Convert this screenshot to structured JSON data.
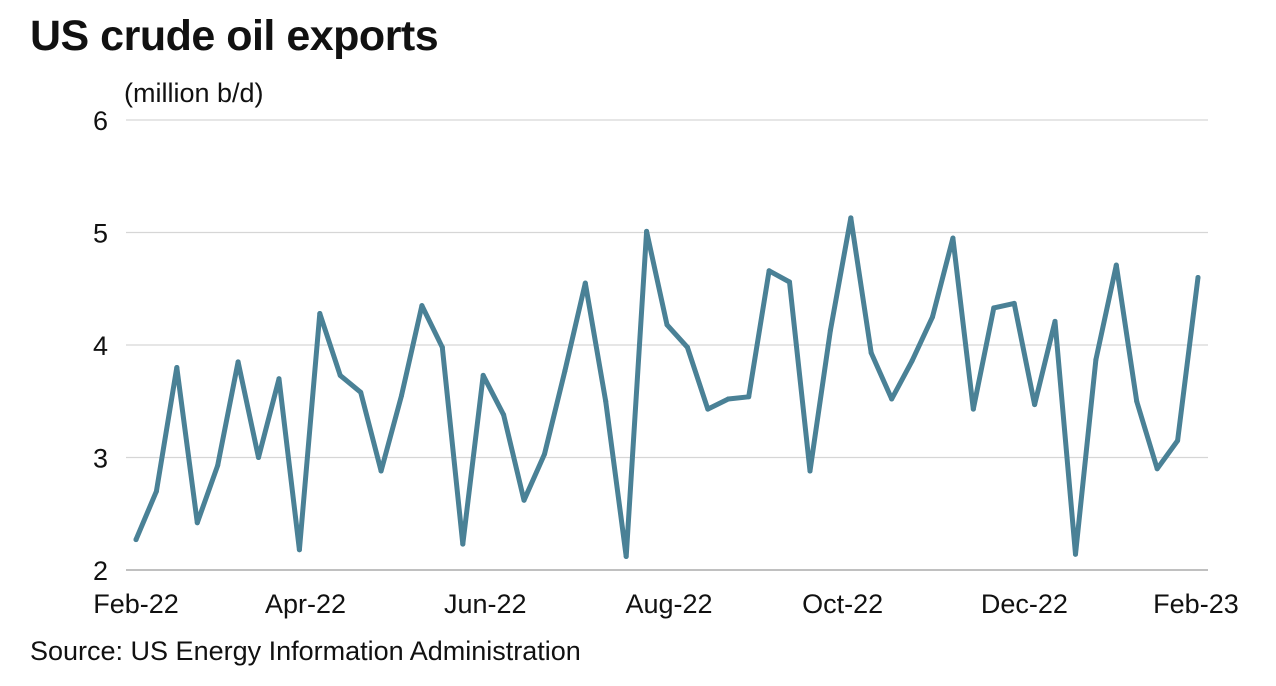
{
  "chart_data": {
    "type": "line",
    "title": "US crude oil exports",
    "ylabel": "(million b/d)",
    "xlabel": "",
    "source": "Source: US Energy Information Administration",
    "ylim": [
      2,
      6
    ],
    "yticks": [
      2,
      3,
      4,
      5,
      6
    ],
    "grid": true,
    "x_tick_labels": [
      {
        "label": "Feb-22",
        "index": 0
      },
      {
        "label": "Apr-22",
        "index": 8.3
      },
      {
        "label": "Jun-22",
        "index": 17.1
      },
      {
        "label": "Aug-22",
        "index": 26.1
      },
      {
        "label": "Oct-22",
        "index": 34.6
      },
      {
        "label": "Dec-22",
        "index": 43.5
      },
      {
        "label": "Feb-23",
        "index": 51.9
      }
    ],
    "series": [
      {
        "name": "US crude oil exports",
        "color": "#4a8196",
        "values": [
          2.27,
          2.7,
          3.8,
          2.42,
          2.93,
          3.85,
          3.0,
          3.7,
          2.18,
          4.28,
          3.73,
          3.58,
          2.88,
          3.55,
          4.35,
          3.98,
          2.23,
          3.73,
          3.38,
          2.62,
          3.03,
          3.77,
          4.55,
          3.5,
          2.12,
          5.01,
          4.18,
          3.98,
          3.43,
          3.52,
          3.54,
          4.66,
          4.56,
          2.88,
          4.13,
          5.13,
          3.93,
          3.52,
          3.86,
          4.25,
          4.95,
          3.43,
          4.33,
          4.37,
          3.47,
          4.21,
          2.14,
          3.87,
          4.71,
          3.5,
          2.9,
          3.15,
          4.6
        ]
      }
    ]
  }
}
